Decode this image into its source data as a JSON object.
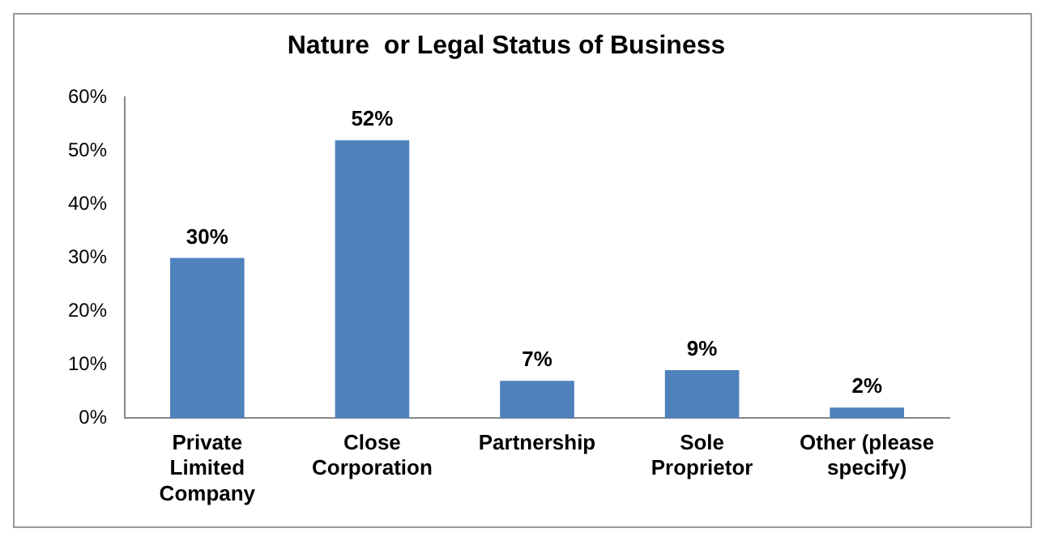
{
  "chart_data": {
    "type": "bar",
    "title": "Nature  or Legal Status of Business",
    "categories": [
      "Private Limited Company",
      "Close Corporation",
      "Partnership",
      "Sole Proprietor",
      "Other (please specify)"
    ],
    "values": [
      30,
      52,
      7,
      9,
      2
    ],
    "value_labels": [
      "30%",
      "52%",
      "7%",
      "9%",
      "2%"
    ],
    "color": "#4f81bd",
    "ylim": [
      0,
      60
    ],
    "yticks": [
      {
        "value": 0,
        "label": "0%"
      },
      {
        "value": 10,
        "label": "10%"
      },
      {
        "value": 20,
        "label": "20%"
      },
      {
        "value": 30,
        "label": "30%"
      },
      {
        "value": 40,
        "label": "40%"
      },
      {
        "value": 50,
        "label": "50%"
      },
      {
        "value": 60,
        "label": "60%"
      }
    ],
    "grid": false,
    "legend": false
  }
}
